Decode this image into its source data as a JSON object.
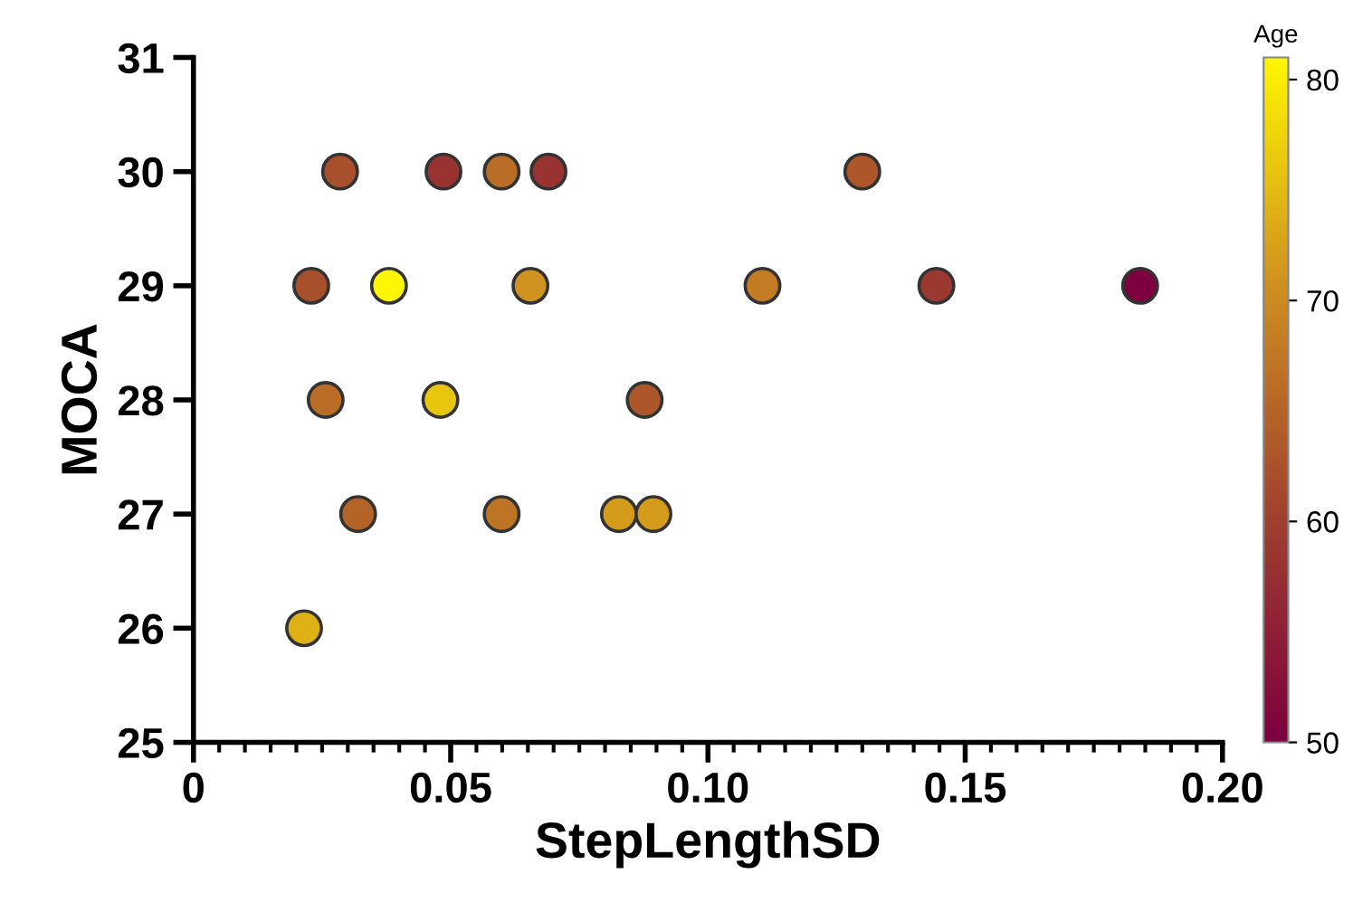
{
  "chart_data": {
    "type": "scatter",
    "xlabel": "StepLengthSD",
    "ylabel": "MOCA",
    "clabel": "Age",
    "x": [
      0.0285,
      0.0486,
      0.0599,
      0.069,
      0.13,
      0.0229,
      0.038,
      0.0655,
      0.1106,
      0.1444,
      0.184,
      0.0257,
      0.048,
      0.0877,
      0.032,
      0.0599,
      0.0827,
      0.0894,
      0.0215
    ],
    "values": [
      30,
      30,
      30,
      30,
      30,
      29,
      29,
      29,
      29,
      29,
      29,
      28,
      28,
      28,
      27,
      27,
      27,
      27,
      26
    ],
    "cvalues": [
      62,
      58,
      66,
      58,
      63,
      62,
      81,
      71,
      68,
      59,
      50,
      66,
      76,
      63,
      65,
      67,
      72,
      72,
      74
    ],
    "clim": [
      50,
      81
    ],
    "cticks": [
      50,
      60,
      70,
      80
    ],
    "xlim": [
      0,
      0.2
    ],
    "xticks": [
      0,
      {
        "value": 0.05,
        "label": "0.05"
      },
      {
        "value": 0.1,
        "label": "0.10"
      },
      {
        "value": 0.15,
        "label": "0.15"
      },
      {
        "value": 0.2,
        "label": "0.20"
      }
    ],
    "ylim": [
      25,
      31
    ],
    "yticks": [
      25,
      26,
      27,
      28,
      29,
      30,
      31
    ],
    "marker": "circle",
    "grid": false,
    "legend": false
  }
}
